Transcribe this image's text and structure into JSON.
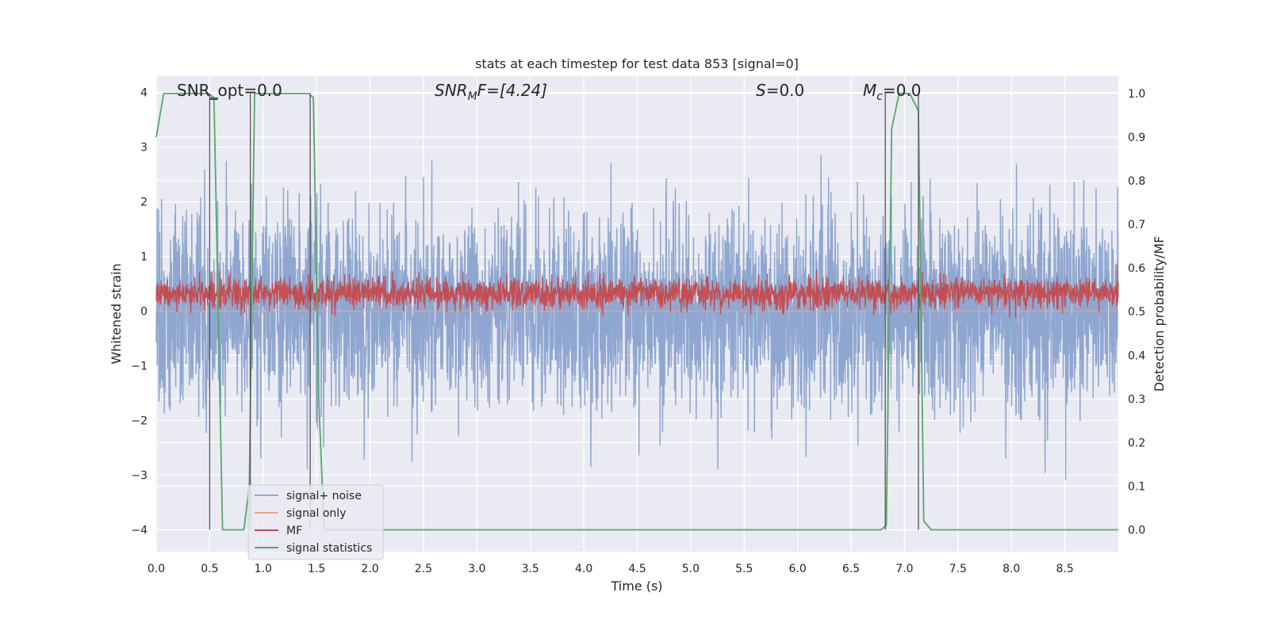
{
  "chart_data": {
    "type": "line",
    "title": "stats at each timestep for test data 853 [signal=0]",
    "xlabel": "Time (s)",
    "ylabel": "Whitened strain",
    "y2label": "Detection probability/MF",
    "xlim": [
      0,
      9
    ],
    "ylim": [
      -4.4,
      4.3
    ],
    "y2lim": [
      -0.05,
      1.04
    ],
    "grid": true,
    "legend_position": "lower-left",
    "x_ticks": [
      "0.0",
      "0.5",
      "1.0",
      "1.5",
      "2.0",
      "2.5",
      "3.0",
      "3.5",
      "4.0",
      "4.5",
      "5.0",
      "5.5",
      "6.0",
      "6.5",
      "7.0",
      "7.5",
      "8.0",
      "8.5"
    ],
    "y_ticks": [
      "4",
      "3",
      "2",
      "1",
      "0",
      "−1",
      "−2",
      "−3",
      "−4"
    ],
    "y2_ticks": [
      "1.0",
      "0.9",
      "0.8",
      "0.7",
      "0.6",
      "0.5",
      "0.4",
      "0.3",
      "0.2",
      "0.1",
      "0.0"
    ],
    "annotations": {
      "snr_opt": "SNR_opt=0.0",
      "snr_mf_sym": "SNR",
      "snr_mf_sub": "M",
      "snr_mf_rest": "F=[4.24]",
      "s_sym": "S",
      "s_rest": "=0.0",
      "mc_sym": "M",
      "mc_sub": "c",
      "mc_rest": "=0.0"
    },
    "series": [
      {
        "name": "signal+ noise",
        "color": "#8fa7d0",
        "kind": "noise",
        "axis": "left",
        "std": 0.9,
        "samples": 3600
      },
      {
        "name": "signal only",
        "color": "#e8a58a",
        "kind": "flat",
        "axis": "left",
        "values": [
          0
        ]
      },
      {
        "name": "MF",
        "color": "#c44e52",
        "kind": "noise",
        "axis": "left",
        "mean": 0.33,
        "std": 0.14,
        "samples": 3000
      },
      {
        "name": "signal statistics",
        "color": "#55a868",
        "kind": "step",
        "axis": "right",
        "x": [
          0.0,
          0.07,
          0.49,
          0.54,
          0.62,
          0.82,
          0.87,
          0.92,
          1.43,
          1.47,
          1.52,
          1.57,
          6.78,
          6.83,
          6.88,
          6.95,
          7.05,
          7.13,
          7.18,
          7.25,
          9.0
        ],
        "values": [
          0.9,
          1.0,
          1.0,
          0.99,
          0.0,
          0.0,
          0.1,
          1.0,
          1.0,
          0.99,
          0.3,
          0.0,
          0.0,
          0.01,
          0.92,
          1.0,
          1.0,
          0.96,
          0.02,
          0.0,
          0.0
        ]
      }
    ],
    "event_markers": {
      "color": "#555555",
      "x": [
        0.5,
        0.88,
        1.44,
        6.82,
        7.13
      ]
    }
  }
}
